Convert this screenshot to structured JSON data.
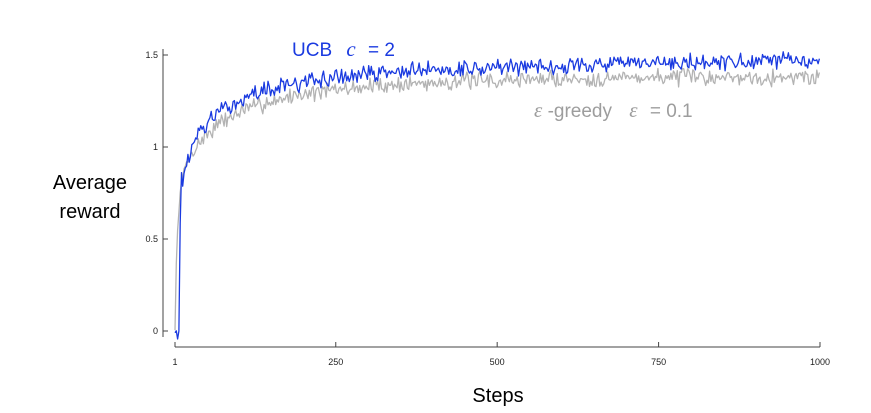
{
  "chart_data": {
    "type": "line",
    "xlabel": "Steps",
    "ylabel_lines": [
      "Average",
      "reward"
    ],
    "xlim": [
      1,
      1000
    ],
    "ylim": [
      0,
      1.5
    ],
    "x_ticks": [
      1,
      250,
      500,
      750,
      1000
    ],
    "x_tick_labels": [
      "1",
      "250",
      "500",
      "750",
      "1000"
    ],
    "y_ticks": [
      0,
      0.5,
      1,
      1.5
    ],
    "y_tick_labels": [
      "0",
      "0.5",
      "1",
      "1.5"
    ],
    "grid": false,
    "series": [
      {
        "name": "ε-greedy ε = 0.1",
        "label_parts": {
          "sym": "ε",
          "word": "-greedy",
          "math": "ε",
          "eq": "= 0.1"
        },
        "color": "#b3b3b3",
        "x": [
          1,
          3,
          5,
          8,
          10,
          12,
          15,
          20,
          30,
          40,
          60,
          80,
          100,
          125,
          150,
          200,
          250,
          300,
          350,
          400,
          450,
          500,
          550,
          600,
          650,
          700,
          750,
          800,
          850,
          900,
          950,
          1000
        ],
        "y": [
          0.0,
          0.35,
          0.55,
          0.72,
          0.78,
          0.82,
          0.87,
          0.92,
          0.98,
          1.03,
          1.1,
          1.15,
          1.19,
          1.22,
          1.25,
          1.29,
          1.31,
          1.33,
          1.34,
          1.35,
          1.36,
          1.36,
          1.37,
          1.37,
          1.37,
          1.38,
          1.38,
          1.38,
          1.38,
          1.38,
          1.38,
          1.38
        ]
      },
      {
        "name": "UCB c = 2",
        "label_parts": {
          "word": "UCB",
          "math": "c",
          "eq": "= 2"
        },
        "color": "#1a3ae0",
        "x": [
          1,
          2,
          4,
          6,
          8,
          9,
          10,
          11,
          12,
          14,
          17,
          20,
          30,
          40,
          60,
          80,
          100,
          125,
          150,
          200,
          250,
          300,
          350,
          400,
          450,
          500,
          550,
          600,
          650,
          700,
          750,
          800,
          850,
          900,
          950,
          1000
        ],
        "y": [
          0.0,
          -0.02,
          0.03,
          -0.08,
          0.05,
          0.6,
          1.08,
          0.85,
          0.78,
          0.82,
          0.88,
          0.93,
          1.02,
          1.09,
          1.16,
          1.21,
          1.25,
          1.29,
          1.32,
          1.35,
          1.38,
          1.4,
          1.41,
          1.42,
          1.43,
          1.43,
          1.44,
          1.44,
          1.45,
          1.45,
          1.45,
          1.46,
          1.46,
          1.46,
          1.47,
          1.47
        ]
      }
    ]
  }
}
